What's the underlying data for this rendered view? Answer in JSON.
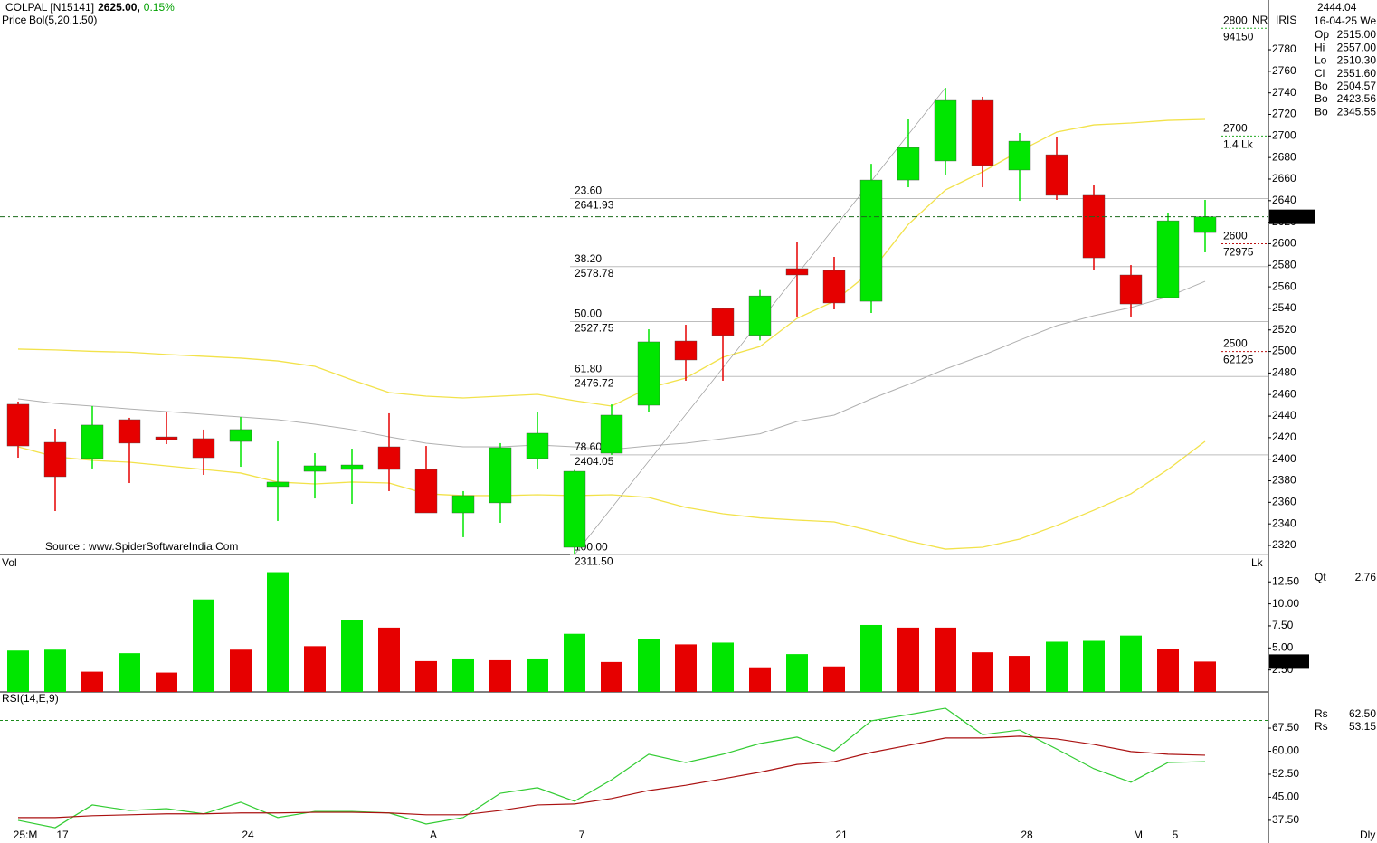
{
  "header": {
    "symbol": "COLPAL [N15141]",
    "price": "2625.00,",
    "change": "0.15%",
    "price_label": "Price",
    "source": "Source : www.SpiderSoftwareIndia.Com",
    "feed": "IRIS",
    "nr": "NR",
    "interval": "Dly",
    "readout": {
      "value": "2444.04",
      "date": "16-04-25 We",
      "rows": [
        {
          "label": "Op",
          "value": "2515.00",
          "color": "#00cc00"
        },
        {
          "label": "Hi",
          "value": "2557.00",
          "color": "#cc0000"
        },
        {
          "label": "Lo",
          "value": "2510.30",
          "color": "#c8a0a0"
        },
        {
          "label": "Cl",
          "value": "2551.60",
          "color": "#cc00cc"
        },
        {
          "label": "Bo",
          "value": "2504.57",
          "color": "#e6d200"
        },
        {
          "label": "Bo",
          "value": "2423.56",
          "color": "#a0a0a0"
        },
        {
          "label": "Bo",
          "value": "2345.55",
          "color": "#e6d200"
        }
      ]
    }
  },
  "chart_data": [
    {
      "type": "candlestick",
      "up_color": "#00e600",
      "down_color": "#e60000",
      "categories": [
        "25:M",
        "17",
        null,
        null,
        null,
        null,
        "24",
        null,
        null,
        null,
        null,
        "A",
        null,
        null,
        null,
        "7",
        null,
        null,
        null,
        null,
        null,
        null,
        "21",
        null,
        null,
        null,
        null,
        "28",
        null,
        null,
        "M",
        "5",
        null
      ],
      "open": [
        2451,
        2415.7,
        2400.6,
        2436.7,
        2420.7,
        2419.1,
        2416.5,
        2374.6,
        2388.8,
        2390.5,
        2411.5,
        2390.5,
        2350.2,
        2359.5,
        2400.6,
        2318.3,
        2405.6,
        2450.1,
        2509.7,
        2539.9,
        2515,
        2576.9,
        2575.2,
        2546.6,
        2659.1,
        2676.8,
        2733,
        2668.4,
        2682.6,
        2644.9,
        2571,
        2550,
        2610.4
      ],
      "high": [
        2453.5,
        2428.3,
        2449.3,
        2438.4,
        2444.2,
        2427.5,
        2439.2,
        2416.5,
        2405.6,
        2409.8,
        2442.6,
        2412.3,
        2370.4,
        2414.9,
        2444.2,
        2390,
        2450.9,
        2520.6,
        2524.8,
        2540,
        2557,
        2602,
        2587.8,
        2674.2,
        2715.4,
        2744.7,
        2736.4,
        2702.8,
        2698.6,
        2654.1,
        2580.2,
        2628.9,
        2640.7
      ],
      "low": [
        2401.4,
        2351.9,
        2391.4,
        2377.9,
        2414,
        2385.5,
        2393,
        2342.7,
        2363.6,
        2358.6,
        2370.4,
        2350.2,
        2327.6,
        2341,
        2390.5,
        2311.5,
        2404,
        2444.2,
        2472.8,
        2472.8,
        2510.3,
        2532.4,
        2539.1,
        2535.7,
        2652.4,
        2664.2,
        2652.4,
        2639.8,
        2640.7,
        2576,
        2532.4,
        2550,
        2592
      ],
      "close": [
        2412.3,
        2383.8,
        2431.7,
        2414.9,
        2418.2,
        2401.4,
        2427.5,
        2378.8,
        2393.9,
        2394.7,
        2390.5,
        2350.2,
        2366.2,
        2410.7,
        2424.1,
        2388.8,
        2440.9,
        2508.9,
        2492.1,
        2514.8,
        2551.6,
        2571,
        2545,
        2659.1,
        2689.3,
        2733,
        2672.6,
        2695.2,
        2644.9,
        2586.9,
        2544.1,
        2621.3,
        2625
      ],
      "last_label": "2625.00",
      "bollinger": {
        "label": "Bol(5,20,1.50)",
        "color": "#f2e24a",
        "middle_color": "#b0b0b0",
        "upper": [
          2502.2,
          2501.4,
          2500.1,
          2499.3,
          2497.2,
          2495.5,
          2493.8,
          2491.2,
          2486.2,
          2473.6,
          2461.9,
          2458.5,
          2456.8,
          2458.5,
          2460.2,
          2454.3,
          2449.3,
          2466.1,
          2475.3,
          2494.6,
          2504.57,
          2530.7,
          2546.6,
          2574.3,
          2618,
          2649.9,
          2666.7,
          2686,
          2703.6,
          2710.3,
          2712,
          2714.5,
          2715.4
        ],
        "middle": [
          2456,
          2451.8,
          2449.3,
          2446.7,
          2444.2,
          2441.7,
          2439.2,
          2436.7,
          2432.5,
          2427.5,
          2420.7,
          2414.9,
          2411.5,
          2411.5,
          2413.2,
          2411.5,
          2409,
          2412.3,
          2414.9,
          2419.1,
          2423.56,
          2435,
          2440.9,
          2456,
          2469.4,
          2483.7,
          2496.3,
          2510.5,
          2524,
          2533.2,
          2540.8,
          2550.8,
          2565.1
        ],
        "lower": [
          2411.5,
          2402.3,
          2398.9,
          2397.2,
          2393.9,
          2390.5,
          2387.2,
          2378.8,
          2377.1,
          2378.8,
          2377.9,
          2367.9,
          2366.2,
          2366.2,
          2367,
          2366.2,
          2367,
          2364.5,
          2355.3,
          2349.4,
          2345.55,
          2343.5,
          2341.8,
          2333.4,
          2324.2,
          2316.6,
          2318.3,
          2325.9,
          2338.5,
          2352.7,
          2367.9,
          2390.5,
          2416.5
        ]
      },
      "fib": [
        {
          "pct": "23.60",
          "price": 2641.93
        },
        {
          "pct": "38.20",
          "price": 2578.78
        },
        {
          "pct": "50.00",
          "price": 2527.75
        },
        {
          "pct": "61.80",
          "price": 2476.72
        },
        {
          "pct": "78.60",
          "price": 2404.05
        },
        {
          "pct": "100.00",
          "price": {
            "value": 2311.5,
            "label": "2311.50"
          }
        }
      ],
      "oi_levels": [
        {
          "strike": 2800,
          "oi": 94150,
          "color": "#22aa22"
        },
        {
          "strike": 2700,
          "oi": "1.4 Lk",
          "color": "#22aa22"
        },
        {
          "strike": 2600,
          "oi": 72975,
          "color": "#bb1111"
        },
        {
          "strike": 2500,
          "oi": 62125,
          "color": "#bb1111"
        }
      ],
      "ylim": [
        2311.6,
        2826.2
      ],
      "yticks": [
        2320,
        2340,
        2360,
        2380,
        2400,
        2420,
        2440,
        2460,
        2480,
        2500,
        2520,
        2540,
        2560,
        2580,
        2600,
        2620,
        2640,
        2660,
        2680,
        2700,
        2720,
        2740,
        2760,
        2780
      ]
    },
    {
      "type": "bar",
      "title": "Vol",
      "unit": "Lk",
      "values": [
        4.7,
        4.8,
        2.3,
        4.4,
        2.2,
        10.5,
        4.8,
        13.6,
        5.2,
        8.2,
        7.3,
        3.5,
        3.7,
        3.6,
        3.7,
        6.6,
        3.4,
        6.0,
        5.4,
        5.6,
        2.8,
        4.3,
        2.9,
        7.6,
        7.3,
        7.3,
        4.5,
        4.1,
        5.7,
        5.8,
        6.4,
        4.9,
        3.45
      ],
      "colors": [
        "#00e600",
        "#00e600",
        "#e60000",
        "#00e600",
        "#e60000",
        "#00e600",
        "#e60000",
        "#00e600",
        "#e60000",
        "#00e600",
        "#e60000",
        "#e60000",
        "#00e600",
        "#e60000",
        "#00e600",
        "#00e600",
        "#e60000",
        "#00e600",
        "#e60000",
        "#00e600",
        "#e60000",
        "#00e600",
        "#e60000",
        "#00e600",
        "#e60000",
        "#e60000",
        "#e60000",
        "#e60000",
        "#00e600",
        "#00e600",
        "#00e600",
        "#e60000",
        "#e60000"
      ],
      "readout": {
        "label": "Qt",
        "value": "2.76"
      },
      "ylim": [
        0,
        15.4
      ],
      "yticks": [
        {
          "value": 2.5,
          "label": "2.50"
        },
        {
          "value": 5,
          "label": "5.00"
        },
        {
          "value": 7.5,
          "label": "7.50"
        },
        {
          "value": 10,
          "label": "10.00"
        },
        {
          "value": 12.5,
          "label": "12.50"
        }
      ]
    },
    {
      "type": "line",
      "title": "RSI(14,E,9)",
      "series": [
        {
          "color": "#33cc33",
          "values": [
            37.5,
            35.1,
            42.5,
            40.7,
            41.3,
            39.6,
            43.4,
            38.4,
            40.4,
            40.4,
            39.9,
            36.3,
            38.4,
            46.3,
            48.1,
            43.7,
            50.7,
            59,
            56.3,
            59,
            62.5,
            64.6,
            60.1,
            69.9,
            71.9,
            74,
            65.4,
            66.9,
            60.7,
            54.3,
            49.9,
            56.3,
            56.6
          ]
        },
        {
          "color": "#aa1111",
          "values": [
            38.4,
            38.4,
            39,
            39.3,
            39.6,
            39.6,
            39.9,
            39.9,
            40.1,
            40.1,
            39.9,
            39.3,
            39.3,
            40.7,
            42.5,
            42.8,
            44.6,
            47.2,
            48.9,
            51,
            53.15,
            55.7,
            56.6,
            59.6,
            61.9,
            64.3,
            64.3,
            64.9,
            64,
            62.2,
            59.9,
            59,
            58.7
          ]
        }
      ],
      "readout": [
        {
          "label": "Rs",
          "value": "62.50"
        },
        {
          "label": "Rs",
          "value": "53.15"
        }
      ],
      "reference": 70,
      "ylim": [
        30.7,
        78.7
      ],
      "yticks": [
        {
          "value": 37.5,
          "label": "37.50"
        },
        {
          "value": 45,
          "label": "45.00"
        },
        {
          "value": 52.5,
          "label": "52.50"
        },
        {
          "value": 60,
          "label": "60.00"
        },
        {
          "value": 67.5,
          "label": "67.50"
        }
      ]
    }
  ]
}
